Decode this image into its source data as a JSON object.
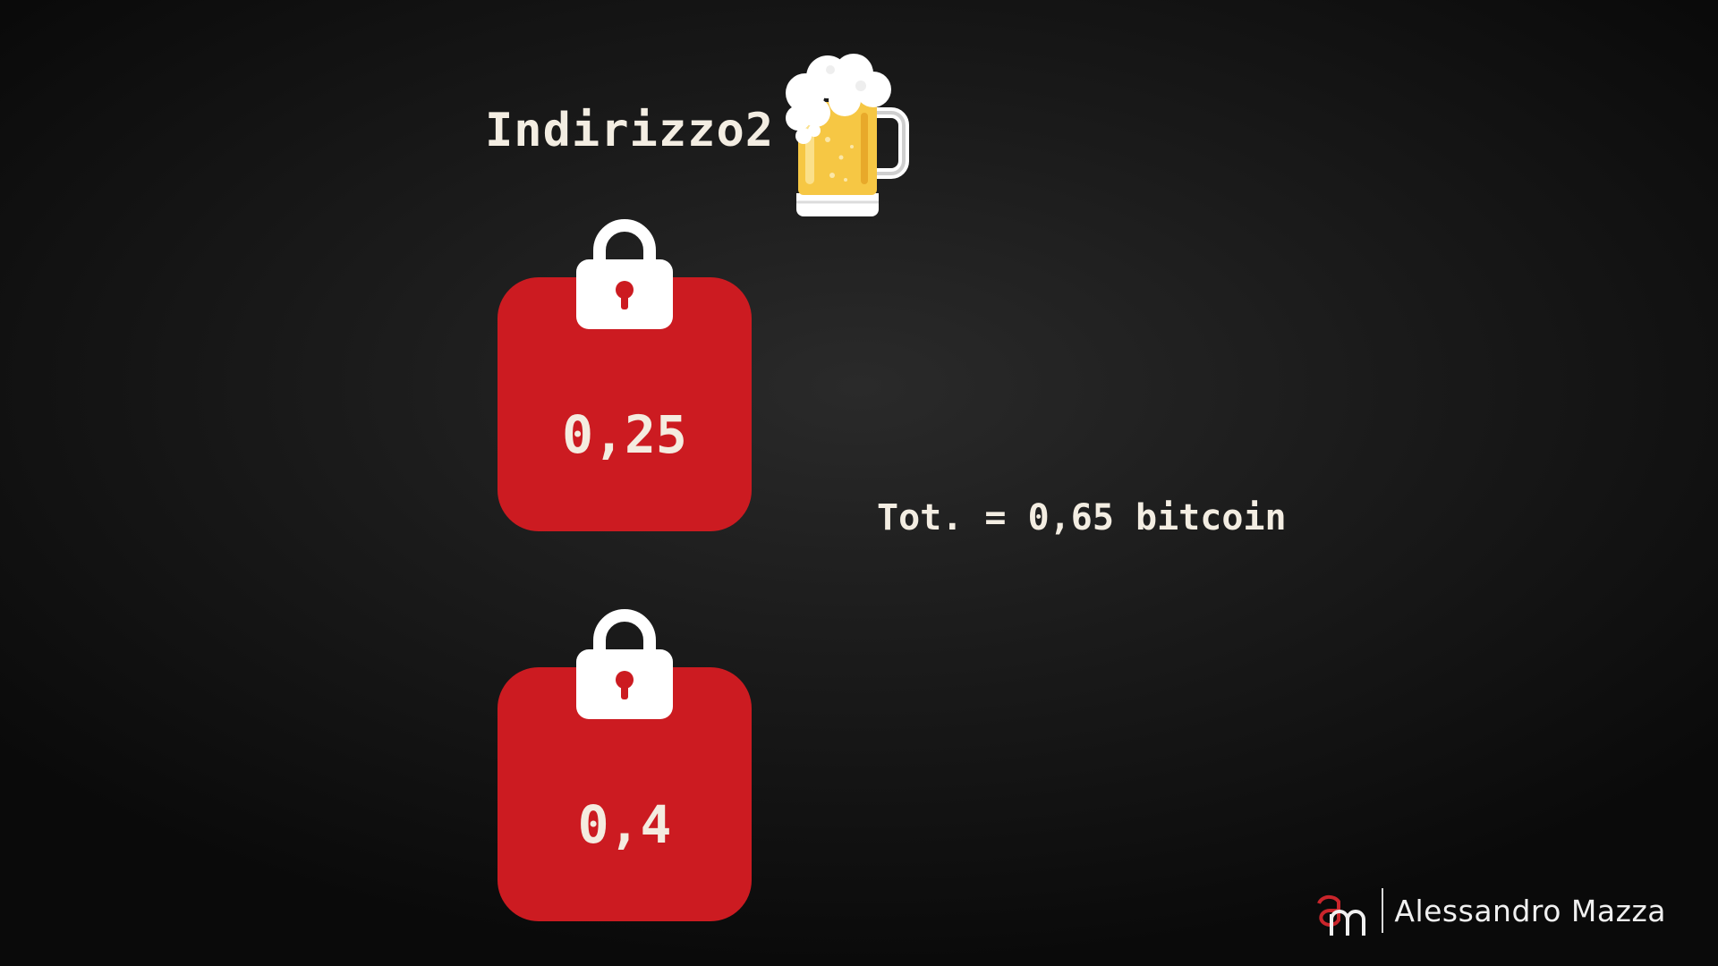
{
  "address": {
    "label": "Indirizzo2"
  },
  "icons": {
    "beer": "beer-mug-icon",
    "lock": "padlock-icon",
    "logo": "am-logo"
  },
  "utxos": [
    {
      "amount": "0,25"
    },
    {
      "amount": "0,4"
    }
  ],
  "total": {
    "text": "Tot. = 0,65 bitcoin"
  },
  "brand": {
    "name": "Alessandro Mazza"
  },
  "colors": {
    "background": "#1b1b1b",
    "bag_red": "#cc1b21",
    "text": "#f3ede2",
    "beer": "#f6c744"
  }
}
